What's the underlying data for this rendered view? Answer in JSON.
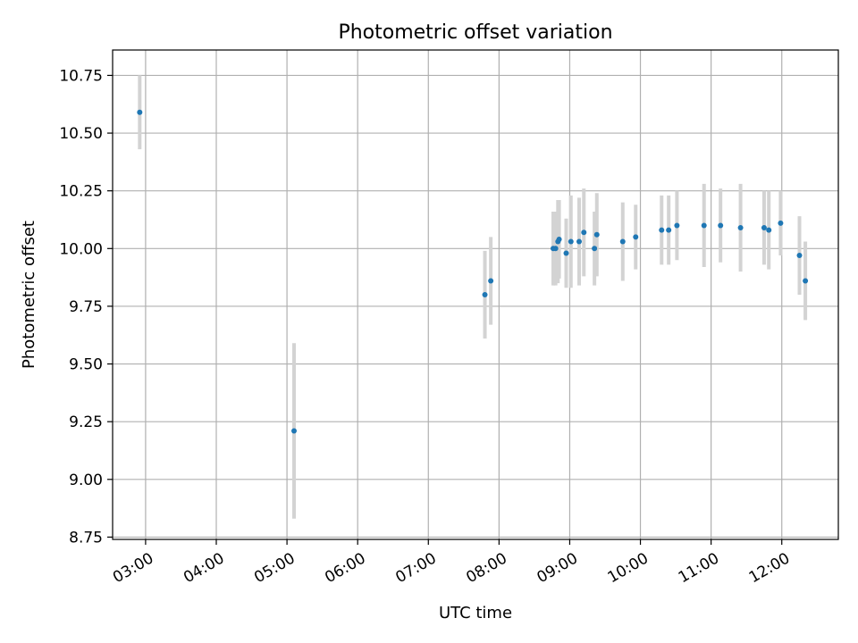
{
  "chart_data": {
    "type": "scatter",
    "title": "Photometric offset variation",
    "xlabel": "UTC time",
    "ylabel": "Photometric offset",
    "x_unit": "UTC time (HH:MM)",
    "xlim": [
      "02:32",
      "12:48"
    ],
    "ylim": [
      8.74,
      10.86
    ],
    "x_ticks": [
      "03:00",
      "04:00",
      "05:00",
      "06:00",
      "07:00",
      "08:00",
      "09:00",
      "10:00",
      "11:00",
      "12:00"
    ],
    "y_ticks": [
      "8.75",
      "9.00",
      "9.25",
      "9.50",
      "9.75",
      "10.00",
      "10.25",
      "10.50",
      "10.75"
    ],
    "grid": true,
    "colors": {
      "point": "#1f77b4",
      "errorbar": "#d3d3d3",
      "grid": "#b0b0b0"
    },
    "points": [
      {
        "x": "02:55",
        "y": 10.59,
        "err": 0.16
      },
      {
        "x": "05:06",
        "y": 9.21,
        "err": 0.38
      },
      {
        "x": "07:48",
        "y": 9.8,
        "err": 0.19
      },
      {
        "x": "07:53",
        "y": 9.86,
        "err": 0.19
      },
      {
        "x": "08:46",
        "y": 10.0,
        "err": 0.16
      },
      {
        "x": "08:48",
        "y": 10.0,
        "err": 0.16
      },
      {
        "x": "08:50",
        "y": 10.03,
        "err": 0.18
      },
      {
        "x": "08:51",
        "y": 10.04,
        "err": 0.17
      },
      {
        "x": "08:57",
        "y": 9.98,
        "err": 0.15
      },
      {
        "x": "09:01",
        "y": 10.03,
        "err": 0.2
      },
      {
        "x": "09:08",
        "y": 10.03,
        "err": 0.19
      },
      {
        "x": "09:12",
        "y": 10.07,
        "err": 0.19
      },
      {
        "x": "09:21",
        "y": 10.0,
        "err": 0.16
      },
      {
        "x": "09:23",
        "y": 10.06,
        "err": 0.18
      },
      {
        "x": "09:45",
        "y": 10.03,
        "err": 0.17
      },
      {
        "x": "09:56",
        "y": 10.05,
        "err": 0.14
      },
      {
        "x": "10:18",
        "y": 10.08,
        "err": 0.15
      },
      {
        "x": "10:24",
        "y": 10.08,
        "err": 0.15
      },
      {
        "x": "10:31",
        "y": 10.1,
        "err": 0.15
      },
      {
        "x": "10:54",
        "y": 10.1,
        "err": 0.18
      },
      {
        "x": "11:08",
        "y": 10.1,
        "err": 0.16
      },
      {
        "x": "11:25",
        "y": 10.09,
        "err": 0.19
      },
      {
        "x": "11:45",
        "y": 10.09,
        "err": 0.16
      },
      {
        "x": "11:49",
        "y": 10.08,
        "err": 0.17
      },
      {
        "x": "11:59",
        "y": 10.11,
        "err": 0.14
      },
      {
        "x": "12:15",
        "y": 9.97,
        "err": 0.17
      },
      {
        "x": "12:20",
        "y": 9.86,
        "err": 0.17
      }
    ]
  }
}
